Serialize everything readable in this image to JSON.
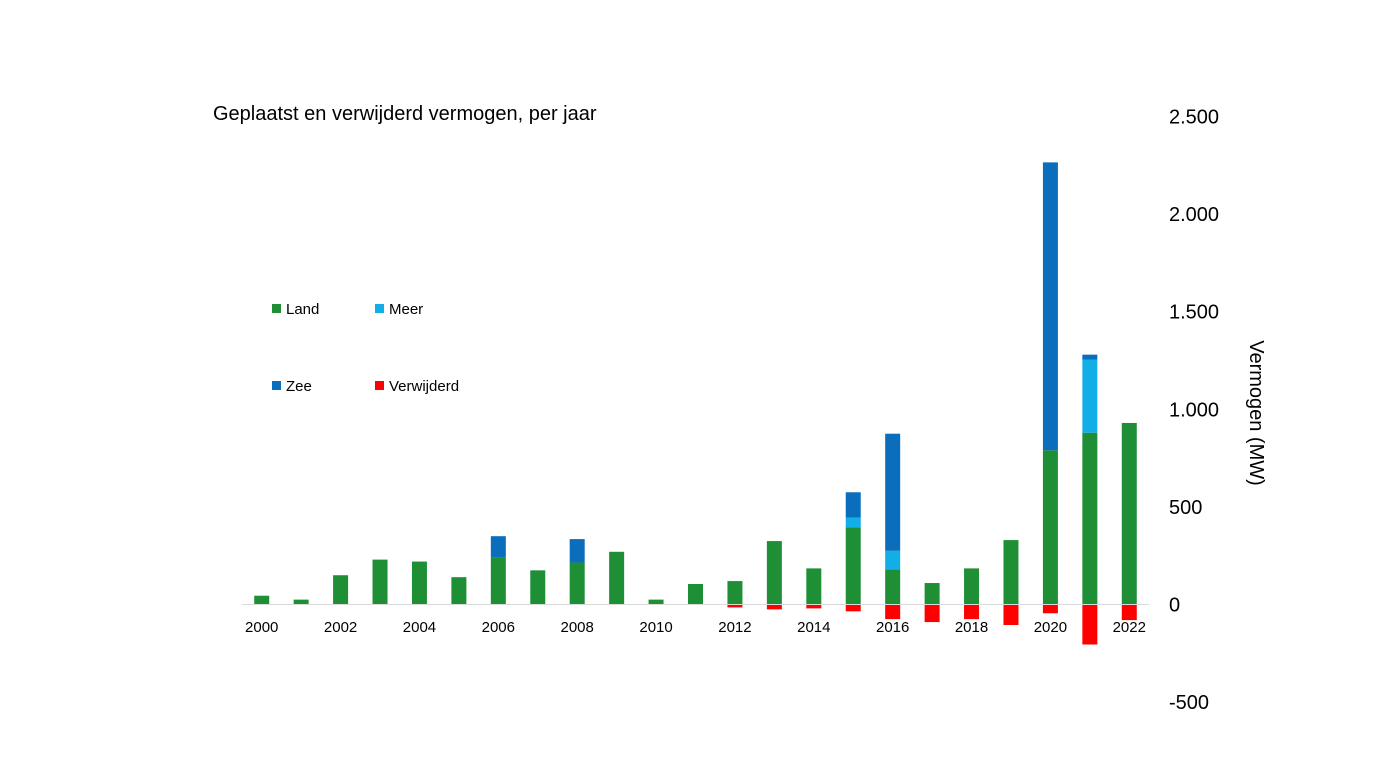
{
  "chart_data": {
    "type": "bar",
    "stacked": true,
    "title": "Geplaatst en verwijderd vermogen, per jaar",
    "xlabel": "",
    "ylabel": "Vermogen (MW)",
    "y_axis_position": "right",
    "ylim": [
      -500,
      2500
    ],
    "yticks": [
      -500,
      0,
      500,
      1000,
      1500,
      2000,
      2500
    ],
    "ytick_labels": [
      "-500",
      "0",
      "500",
      "1.000",
      "1.500",
      "2.000",
      "2.500"
    ],
    "categories": [
      2000,
      2001,
      2002,
      2003,
      2004,
      2005,
      2006,
      2007,
      2008,
      2009,
      2010,
      2011,
      2012,
      2013,
      2014,
      2015,
      2016,
      2017,
      2018,
      2019,
      2020,
      2021,
      2022
    ],
    "xtick_labels": [
      "2000",
      "2002",
      "2004",
      "2006",
      "2008",
      "2010",
      "2012",
      "2014",
      "2016",
      "2018",
      "2020",
      "2022"
    ],
    "grid": false,
    "legend": "left, two columns",
    "series": [
      {
        "name": "Land",
        "color": "#1f8f35",
        "values": [
          45,
          25,
          150,
          230,
          220,
          140,
          240,
          175,
          215,
          270,
          25,
          105,
          120,
          325,
          185,
          395,
          180,
          110,
          185,
          330,
          790,
          880,
          930
        ]
      },
      {
        "name": "Meer",
        "color": "#12aee8",
        "values": [
          0,
          0,
          0,
          0,
          0,
          0,
          0,
          0,
          0,
          0,
          0,
          0,
          0,
          0,
          0,
          50,
          95,
          0,
          0,
          0,
          0,
          375,
          0
        ]
      },
      {
        "name": "Zee",
        "color": "#0a6ebd",
        "values": [
          0,
          0,
          0,
          0,
          0,
          0,
          110,
          0,
          120,
          0,
          0,
          0,
          0,
          0,
          0,
          130,
          600,
          0,
          0,
          0,
          1475,
          25,
          0
        ]
      },
      {
        "name": "Verwijderd",
        "color": "#ff0000",
        "values": [
          0,
          0,
          0,
          0,
          0,
          0,
          0,
          0,
          0,
          0,
          0,
          0,
          -15,
          -25,
          -20,
          -35,
          -75,
          -90,
          -75,
          -105,
          -45,
          -205,
          -80
        ]
      }
    ]
  }
}
